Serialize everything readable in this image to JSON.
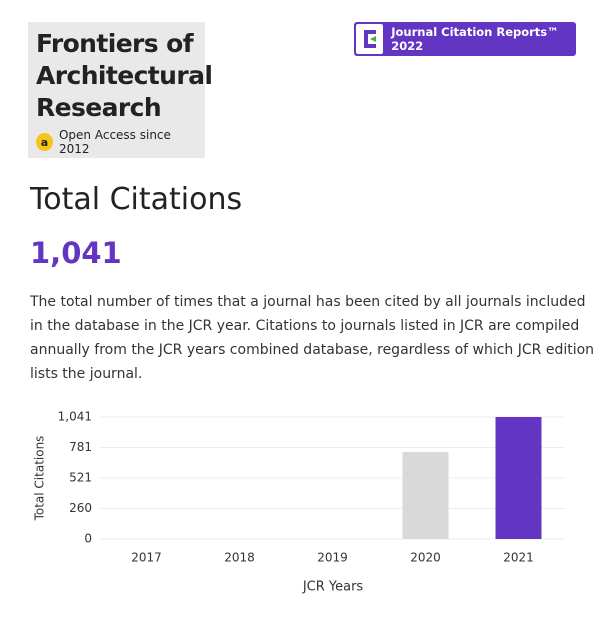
{
  "journal": {
    "title": "Frontiers of Architectural Research",
    "access": "Open Access since 2012"
  },
  "badge": "Journal Citation Reports™ 2022",
  "metric": {
    "heading": "Total Citations",
    "value": "1,041",
    "description": "The total number of times that a journal has been cited by all journals included in the database in the JCR year. Citations to journals listed in JCR are compiled annually from the JCR years combined database, regardless of which JCR edition lists the journal."
  },
  "chart_data": {
    "type": "bar",
    "x_label": "JCR Years",
    "y_label": "Total Citations",
    "categories": [
      "2017",
      "2018",
      "2019",
      "2020",
      "2021"
    ],
    "values": [
      null,
      null,
      null,
      742,
      1041
    ],
    "colors": [
      "#d9d9d9",
      "#d9d9d9",
      "#d9d9d9",
      "#d9d9d9",
      "#6236c2"
    ],
    "ylim": [
      0,
      1041
    ],
    "yticks": [
      0,
      260,
      521,
      781,
      {
        "value": 1041,
        "label": "1,041"
      }
    ],
    "grid": true
  }
}
